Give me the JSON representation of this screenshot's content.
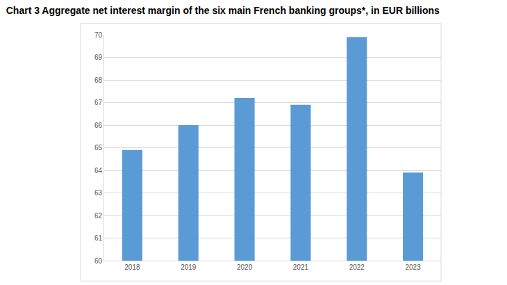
{
  "chart_data": {
    "type": "bar",
    "title": "Chart 3 Aggregate net interest margin of the six main French banking groups*, in EUR billions",
    "categories": [
      "2018",
      "2019",
      "2020",
      "2021",
      "2022",
      "2023"
    ],
    "values": [
      64.9,
      66.0,
      67.2,
      66.9,
      69.9,
      63.9
    ],
    "color": "#5b9bd5",
    "ylim": [
      60,
      70
    ],
    "yticks": [
      60,
      61,
      62,
      63,
      64,
      65,
      66,
      67,
      68,
      69,
      70
    ],
    "grid": true
  }
}
